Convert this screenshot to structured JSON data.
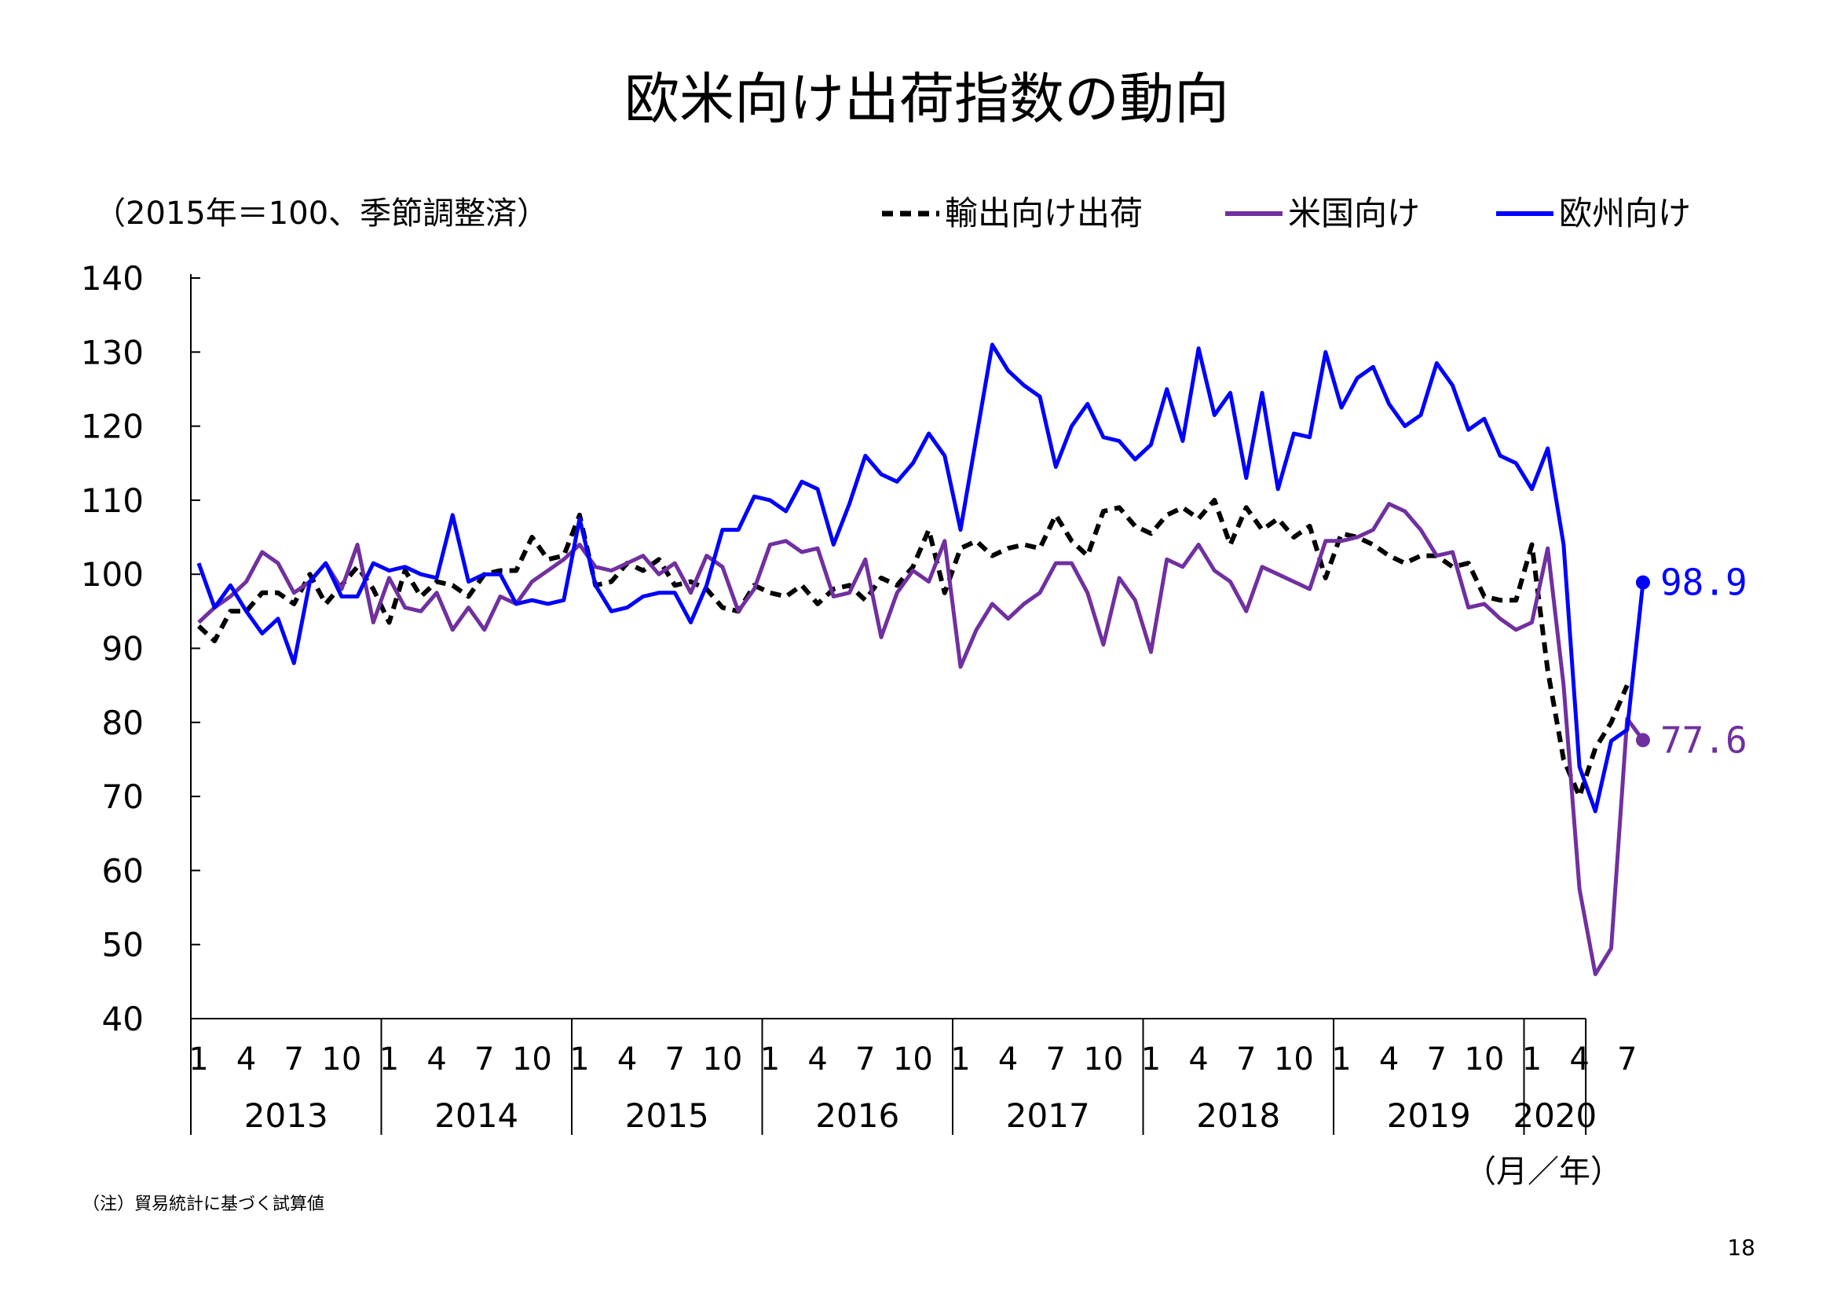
{
  "slide": {
    "title": "欧米向け出荷指数の動向",
    "unit_note": "（2015年＝100、季節調整済）",
    "footnote": "（注）貿易統計に基づく試算値",
    "page_number": "18",
    "x_unit_label": "（月／年）"
  },
  "chart_data": {
    "type": "line",
    "title": "欧米向け出荷指数の動向",
    "ylim": [
      40,
      140
    ],
    "yticks": [
      40,
      50,
      60,
      70,
      80,
      90,
      100,
      110,
      120,
      130,
      140
    ],
    "grid": false,
    "legend_position": "top-right",
    "years": [
      "2013",
      "2014",
      "2015",
      "2016",
      "2017",
      "2018",
      "2019",
      "2020"
    ],
    "month_ticks": [
      "1",
      "4",
      "7",
      "10"
    ],
    "x_start": "2013-01",
    "series": [
      {
        "name": "輸出向け出荷",
        "color": "#000000",
        "dash": true,
        "values": [
          93,
          91,
          95,
          95,
          97.5,
          97.5,
          96,
          100,
          96,
          98.5,
          101,
          98,
          93.5,
          100.5,
          97,
          99,
          98.5,
          97,
          100,
          100.5,
          100.5,
          105,
          102,
          102.5,
          108,
          98.5,
          99,
          101.5,
          100.5,
          102,
          98.5,
          99,
          98,
          95.5,
          95,
          98.5,
          97.5,
          97,
          98.5,
          96,
          98,
          98.5,
          96.5,
          99.5,
          98.5,
          101,
          106,
          97.5,
          103.5,
          104.5,
          102.5,
          103.5,
          104,
          103.5,
          108,
          104.5,
          102.5,
          108.5,
          109,
          106.5,
          105.5,
          108,
          109,
          107.5,
          110,
          104,
          109,
          106,
          107.5,
          105,
          106.5,
          99.5,
          105.5,
          105,
          104,
          102.5,
          101.5,
          102.5,
          102.5,
          101,
          101.5,
          97,
          96.5,
          96.5,
          104,
          87,
          75,
          70,
          76.5,
          80,
          85
        ],
        "end_label": ""
      },
      {
        "name": "米国向け",
        "color": "#7030a0",
        "dash": false,
        "values": [
          93.5,
          95.5,
          97,
          99,
          103,
          101.5,
          97.5,
          99,
          101.5,
          98,
          104,
          93.5,
          99.5,
          95.5,
          95,
          97.5,
          92.5,
          95.5,
          92.5,
          97,
          96,
          99,
          100.5,
          102,
          104,
          101,
          100.5,
          101.5,
          102.5,
          100,
          101.5,
          97.5,
          102.5,
          101,
          95,
          98,
          104,
          104.5,
          103,
          103.5,
          97,
          97.5,
          102,
          91.5,
          97.5,
          100.5,
          99,
          104.5,
          87.5,
          92.5,
          96,
          94,
          96,
          97.5,
          101.5,
          101.5,
          97.5,
          90.5,
          99.5,
          96.5,
          89.5,
          102,
          101,
          104,
          100.5,
          99,
          95,
          101,
          100,
          99,
          98,
          104.5,
          104.5,
          105,
          106,
          109.5,
          108.5,
          106,
          102.5,
          103,
          95.5,
          96,
          94,
          92.5,
          93.5,
          103.5,
          85,
          57.5,
          46,
          49.5,
          80.5,
          77.6
        ],
        "end_label": "77.6"
      },
      {
        "name": "欧州向け",
        "color": "#0000ff",
        "dash": false,
        "values": [
          101.5,
          95.5,
          98.5,
          95,
          92,
          94,
          88,
          99,
          101.5,
          97,
          97,
          101.5,
          100.5,
          101,
          100,
          99.5,
          108,
          99,
          100,
          100,
          96,
          96.5,
          96,
          96.5,
          107.5,
          98.5,
          95,
          95.5,
          97,
          97.5,
          97.5,
          93.5,
          98.5,
          106,
          106,
          110.5,
          110,
          108.5,
          112.5,
          111.5,
          104,
          109.5,
          116,
          113.5,
          112.5,
          115,
          119,
          116,
          106,
          118.5,
          131,
          127.5,
          125.5,
          124,
          114.5,
          120,
          123,
          118.5,
          118,
          115.5,
          117.5,
          125,
          118,
          130.5,
          121.5,
          124.5,
          113,
          124.5,
          111.5,
          119,
          118.5,
          130,
          122.5,
          126.5,
          128,
          123,
          120,
          121.5,
          128.5,
          125.5,
          119.5,
          121,
          116,
          115,
          111.5,
          117,
          104,
          74,
          68,
          77.5,
          79,
          98.9
        ],
        "end_label": "98.9"
      }
    ]
  }
}
